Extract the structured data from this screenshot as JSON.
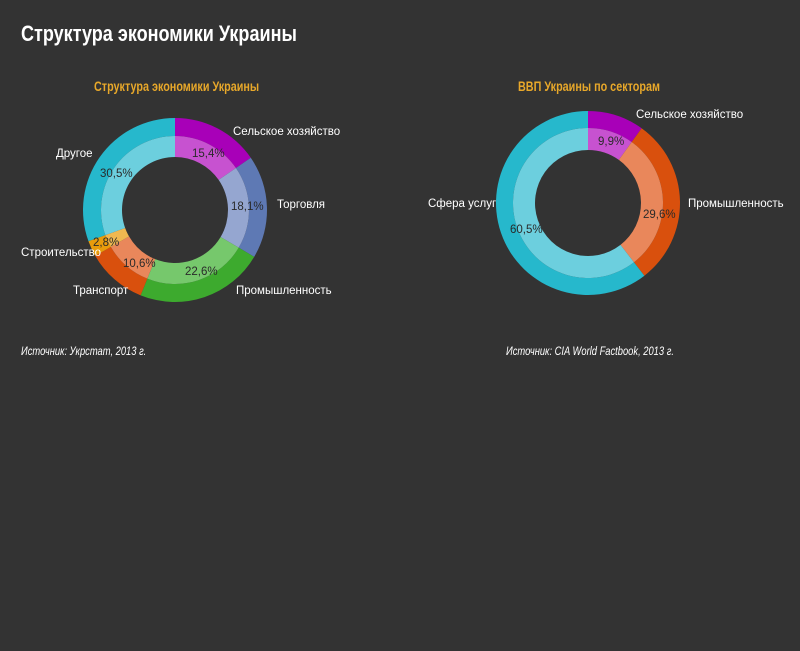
{
  "page": {
    "title": "Структура экономики Украины",
    "background": "#333333"
  },
  "chart_data": [
    {
      "type": "pie",
      "subtype": "donut",
      "title": "Структура экономики Украины",
      "source": "Источник: Укрстат, 2013 г.",
      "categories": [
        "Сельское хозяйство",
        "Торговля",
        "Промышленность",
        "Транспорт",
        "Строительство",
        "Другое"
      ],
      "values": [
        15.4,
        18.1,
        22.6,
        10.6,
        2.8,
        30.5
      ],
      "value_labels": [
        "15,4%",
        "18,1%",
        "22,6%",
        "10,6%",
        "2,8%",
        "30,5%"
      ],
      "colors_outer": [
        "#a800b8",
        "#5e79b4",
        "#3daa2e",
        "#d9500d",
        "#e89c0c",
        "#26b8cc"
      ],
      "colors_inner": [
        "#c752d0",
        "#95a6d0",
        "#76c86c",
        "#e9875b",
        "#f0b850",
        "#6ccfde"
      ],
      "start_angle": 0,
      "direction": "clockwise",
      "unit": "%"
    },
    {
      "type": "pie",
      "subtype": "donut",
      "title": "ВВП Украины по секторам",
      "source": "Источник: CIA World Factbook, 2013 г.",
      "categories": [
        "Сельское хозяйство",
        "Промышленность",
        "Сфера услуг"
      ],
      "values": [
        9.9,
        29.6,
        60.5
      ],
      "value_labels": [
        "9,9%",
        "29,6%",
        "60,5%"
      ],
      "colors_outer": [
        "#a800b8",
        "#d9500d",
        "#26b8cc"
      ],
      "colors_inner": [
        "#c752d0",
        "#e9875b",
        "#6ccfde"
      ],
      "start_angle": 0,
      "direction": "clockwise",
      "unit": "%"
    }
  ],
  "charts": {
    "left": {
      "title": "Структура экономики Украины",
      "source": "Источник: Укрстат, 2013 г.",
      "labels": {
        "agri": "Сельское хозяйство",
        "trade": "Торговля",
        "industry": "Промышленность",
        "transport": "Транспорт",
        "construction": "Строительство",
        "other": "Другое"
      },
      "pcts": {
        "agri": "15,4%",
        "trade": "18,1%",
        "industry": "22,6%",
        "transport": "10,6%",
        "construction": "2,8%",
        "other": "30,5%"
      }
    },
    "right": {
      "title": "ВВП Украины по секторам",
      "source": "Источник: CIA World Factbook, 2013 г.",
      "labels": {
        "agri": "Сельское хозяйство",
        "industry": "Промышленность",
        "services": "Сфера услуг"
      },
      "pcts": {
        "agri": "9,9%",
        "industry": "29,6%",
        "services": "60,5%"
      }
    }
  }
}
